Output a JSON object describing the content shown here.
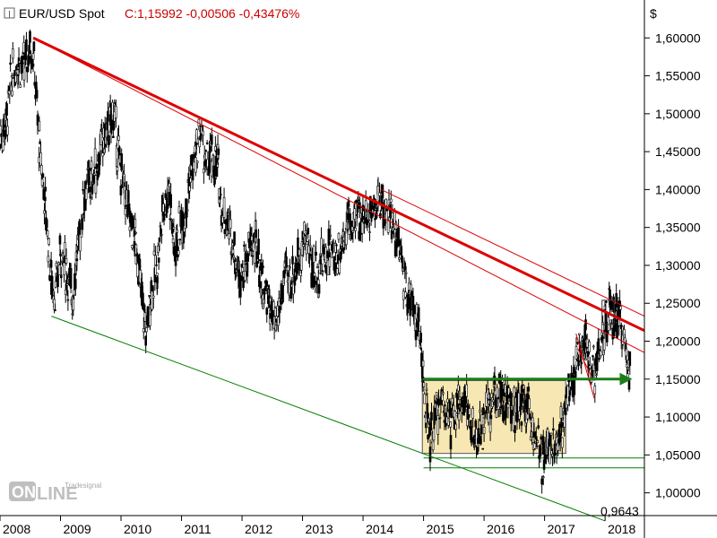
{
  "header": {
    "symbol": "EUR/USD Spot",
    "quote": "C:1,15992 -0,00506 -0,43476%"
  },
  "currency_label": "$",
  "logo": {
    "brand": "Tradesignal",
    "product": "online"
  },
  "colors": {
    "background": "#ffffff",
    "candles": "#000000",
    "trend_red": "#dd0000",
    "support_green": "#008000",
    "arrow_green": "#1a7f1a",
    "range_box_fill": "#f7e8b3",
    "range_box_stroke": "#555555",
    "title_red": "#cc0000"
  },
  "chart_data": {
    "type": "candlestick",
    "title": "EUR/USD Spot",
    "ylabel": "$",
    "ylim": [
      0.97,
      1.65
    ],
    "xlim": [
      2008.0,
      2018.65
    ],
    "y_ticks": [
      "1,60000",
      "1,55000",
      "1,50000",
      "1,45000",
      "1,40000",
      "1,35000",
      "1,30000",
      "1,25000",
      "1,20000",
      "1,15000",
      "1,10000",
      "1,05000",
      "1,00000"
    ],
    "x_ticks": [
      "2008",
      "2009",
      "2010",
      "2011",
      "2012",
      "2013",
      "2014",
      "2015",
      "2016",
      "2017",
      "2018"
    ],
    "close_path": [
      [
        2008.0,
        1.47
      ],
      [
        2008.1,
        1.49
      ],
      [
        2008.2,
        1.55
      ],
      [
        2008.3,
        1.57
      ],
      [
        2008.4,
        1.56
      ],
      [
        2008.5,
        1.59
      ],
      [
        2008.55,
        1.58
      ],
      [
        2008.65,
        1.46
      ],
      [
        2008.75,
        1.38
      ],
      [
        2008.85,
        1.28
      ],
      [
        2008.92,
        1.26
      ],
      [
        2009.0,
        1.32
      ],
      [
        2009.1,
        1.29
      ],
      [
        2009.2,
        1.26
      ],
      [
        2009.3,
        1.33
      ],
      [
        2009.4,
        1.4
      ],
      [
        2009.5,
        1.41
      ],
      [
        2009.6,
        1.43
      ],
      [
        2009.7,
        1.46
      ],
      [
        2009.8,
        1.48
      ],
      [
        2009.88,
        1.5
      ],
      [
        2009.95,
        1.45
      ],
      [
        2010.05,
        1.4
      ],
      [
        2010.15,
        1.36
      ],
      [
        2010.25,
        1.33
      ],
      [
        2010.35,
        1.25
      ],
      [
        2010.42,
        1.21
      ],
      [
        2010.5,
        1.27
      ],
      [
        2010.6,
        1.3
      ],
      [
        2010.7,
        1.38
      ],
      [
        2010.8,
        1.4
      ],
      [
        2010.88,
        1.32
      ],
      [
        2010.95,
        1.34
      ],
      [
        2011.05,
        1.37
      ],
      [
        2011.15,
        1.42
      ],
      [
        2011.25,
        1.45
      ],
      [
        2011.32,
        1.48
      ],
      [
        2011.4,
        1.43
      ],
      [
        2011.5,
        1.44
      ],
      [
        2011.6,
        1.43
      ],
      [
        2011.68,
        1.37
      ],
      [
        2011.75,
        1.36
      ],
      [
        2011.85,
        1.33
      ],
      [
        2011.95,
        1.29
      ],
      [
        2012.05,
        1.3
      ],
      [
        2012.15,
        1.33
      ],
      [
        2012.25,
        1.32
      ],
      [
        2012.35,
        1.27
      ],
      [
        2012.45,
        1.25
      ],
      [
        2012.55,
        1.21
      ],
      [
        2012.65,
        1.26
      ],
      [
        2012.72,
        1.29
      ],
      [
        2012.8,
        1.28
      ],
      [
        2012.9,
        1.3
      ],
      [
        2012.98,
        1.32
      ],
      [
        2013.08,
        1.34
      ],
      [
        2013.15,
        1.3
      ],
      [
        2013.25,
        1.29
      ],
      [
        2013.35,
        1.31
      ],
      [
        2013.45,
        1.32
      ],
      [
        2013.55,
        1.31
      ],
      [
        2013.65,
        1.33
      ],
      [
        2013.75,
        1.36
      ],
      [
        2013.85,
        1.35
      ],
      [
        2013.95,
        1.37
      ],
      [
        2014.05,
        1.36
      ],
      [
        2014.15,
        1.38
      ],
      [
        2014.25,
        1.38
      ],
      [
        2014.3,
        1.39
      ],
      [
        2014.38,
        1.37
      ],
      [
        2014.45,
        1.36
      ],
      [
        2014.55,
        1.34
      ],
      [
        2014.62,
        1.31
      ],
      [
        2014.7,
        1.27
      ],
      [
        2014.78,
        1.26
      ],
      [
        2014.85,
        1.24
      ],
      [
        2014.92,
        1.22
      ],
      [
        2014.98,
        1.16
      ],
      [
        2015.05,
        1.1
      ],
      [
        2015.12,
        1.07
      ],
      [
        2015.18,
        1.09
      ],
      [
        2015.25,
        1.11
      ],
      [
        2015.35,
        1.12
      ],
      [
        2015.45,
        1.09
      ],
      [
        2015.55,
        1.1
      ],
      [
        2015.62,
        1.13
      ],
      [
        2015.7,
        1.12
      ],
      [
        2015.78,
        1.09
      ],
      [
        2015.85,
        1.06
      ],
      [
        2015.92,
        1.08
      ],
      [
        2016.0,
        1.09
      ],
      [
        2016.08,
        1.11
      ],
      [
        2016.18,
        1.13
      ],
      [
        2016.28,
        1.14
      ],
      [
        2016.35,
        1.12
      ],
      [
        2016.45,
        1.11
      ],
      [
        2016.55,
        1.11
      ],
      [
        2016.62,
        1.12
      ],
      [
        2016.7,
        1.12
      ],
      [
        2016.78,
        1.1
      ],
      [
        2016.85,
        1.07
      ],
      [
        2016.92,
        1.05
      ],
      [
        2016.98,
        1.04
      ],
      [
        2017.05,
        1.07
      ],
      [
        2017.12,
        1.06
      ],
      [
        2017.2,
        1.07
      ],
      [
        2017.28,
        1.09
      ],
      [
        2017.35,
        1.12
      ],
      [
        2017.42,
        1.14
      ],
      [
        2017.5,
        1.16
      ],
      [
        2017.55,
        1.19
      ],
      [
        2017.62,
        1.18
      ],
      [
        2017.68,
        1.2
      ],
      [
        2017.75,
        1.17
      ],
      [
        2017.82,
        1.16
      ],
      [
        2017.88,
        1.18
      ],
      [
        2017.95,
        1.2
      ],
      [
        2018.02,
        1.22
      ],
      [
        2018.08,
        1.24
      ],
      [
        2018.15,
        1.23
      ],
      [
        2018.22,
        1.24
      ],
      [
        2018.28,
        1.21
      ],
      [
        2018.35,
        1.18
      ],
      [
        2018.42,
        1.16
      ]
    ],
    "trendlines": [
      {
        "id": "main-resistance",
        "color": "red",
        "width": 3,
        "from": [
          2008.55,
          1.6
        ],
        "to": [
          2018.65,
          1.214
        ]
      },
      {
        "id": "upper-parallel",
        "color": "red",
        "width": 1,
        "from": [
          2014.3,
          1.4
        ],
        "to": [
          2018.65,
          1.233
        ]
      },
      {
        "id": "lower-parallel",
        "color": "red",
        "width": 1,
        "from": [
          2008.55,
          1.6
        ],
        "to": [
          2018.65,
          1.185
        ]
      },
      {
        "id": "lower-support",
        "color": "green",
        "width": 1,
        "from": [
          2008.85,
          1.233
        ],
        "to": [
          2018.0,
          0.963
        ]
      }
    ],
    "support_label": "0,9643",
    "range_box": {
      "x0": 2014.98,
      "x1": 2017.35,
      "y0": 1.052,
      "y1": 1.148
    },
    "pattern_box": {
      "x0": 2017.95,
      "x1": 2018.15,
      "y0": 1.222,
      "y1": 1.254
    },
    "breakout_arrow": {
      "x0": 2015.0,
      "x1": 2018.45,
      "y": 1.15
    },
    "support_lines": [
      1.046,
      1.033
    ]
  }
}
